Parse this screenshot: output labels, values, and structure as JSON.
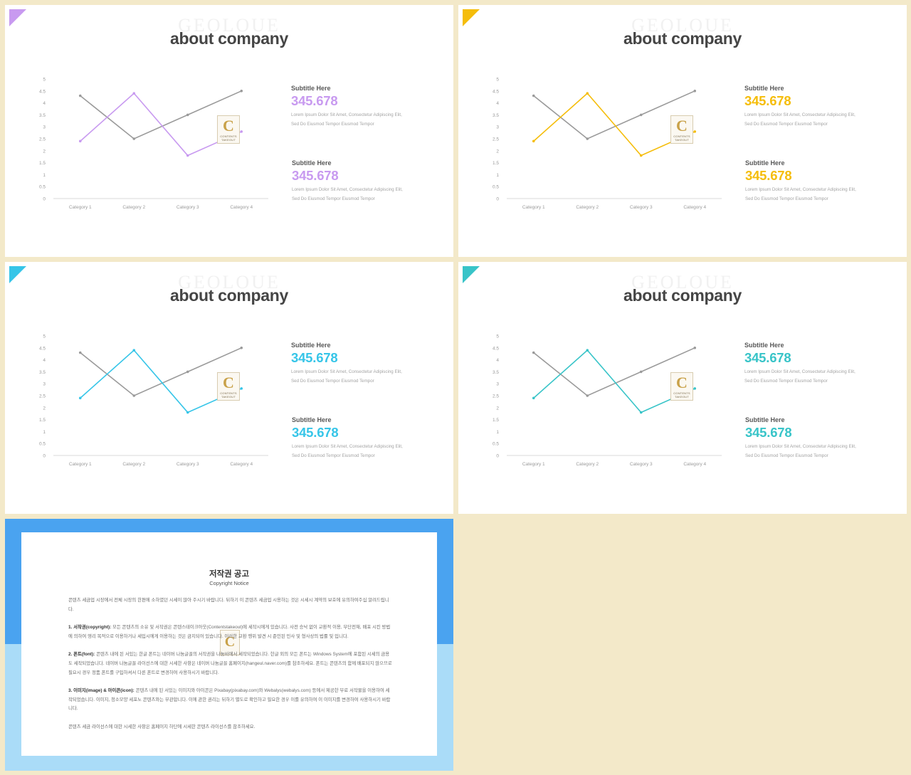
{
  "slides": [
    {
      "accent": "#c89af0",
      "watermark": "GEOLOUE",
      "title": "about company",
      "info": [
        {
          "subtitle": "Subtitle Here",
          "value": "345.678",
          "desc_line1": "Lorem Ipsum Dolor Sit Amet, Consectetur Adipiscing Elit,",
          "desc_line2": "Sed Do Eiusmod Tempor Eiusmod Tempor"
        },
        {
          "subtitle": "Subtitle Here",
          "value": "345.678",
          "desc_line1": "Lorem Ipsum Dolor Sit Amet, Consectetur Adipiscing Elit,",
          "desc_line2": "Sed Do Eiusmod Tempor Eiusmod Tempor"
        }
      ]
    },
    {
      "accent": "#f5bd0a",
      "watermark": "GEOLOUE",
      "title": "about company",
      "info": [
        {
          "subtitle": "Subtitle Here",
          "value": "345.678",
          "desc_line1": "Lorem Ipsum Dolor Sit Amet, Consectetur Adipiscing Elit,",
          "desc_line2": "Sed Do Eiusmod Tempor Eiusmod Tempor"
        },
        {
          "subtitle": "Subtitle Here",
          "value": "345.678",
          "desc_line1": "Lorem Ipsum Dolor Sit Amet, Consectetur Adipiscing Elit,",
          "desc_line2": "Sed Do Eiusmod Tempor Eiusmod Tempor"
        }
      ]
    },
    {
      "accent": "#36c5e8",
      "watermark": "GEOLOUE",
      "title": "about company",
      "info": [
        {
          "subtitle": "Subtitle Here",
          "value": "345.678",
          "desc_line1": "Lorem Ipsum Dolor Sit Amet, Consectetur Adipiscing Elit,",
          "desc_line2": "Sed Do Eiusmod Tempor Eiusmod Tempor"
        },
        {
          "subtitle": "Subtitle Here",
          "value": "345.678",
          "desc_line1": "Lorem Ipsum Dolor Sit Amet, Consectetur Adipiscing Elit,",
          "desc_line2": "Sed Do Eiusmod Tempor Eiusmod Tempor"
        }
      ]
    },
    {
      "accent": "#38c4c8",
      "watermark": "GEOLOUE",
      "title": "about company",
      "info": [
        {
          "subtitle": "Subtitle Here",
          "value": "345.678",
          "desc_line1": "Lorem Ipsum Dolor Sit Amet, Consectetur Adipiscing Elit,",
          "desc_line2": "Sed Do Eiusmod Tempor Eiusmod Tempor"
        },
        {
          "subtitle": "Subtitle Here",
          "value": "345.678",
          "desc_line1": "Lorem Ipsum Dolor Sit Amet, Consectetur Adipiscing Elit,",
          "desc_line2": "Sed Do Eiusmod Tempor Eiusmod Tempor"
        }
      ]
    }
  ],
  "chart_data": {
    "type": "line",
    "categories": [
      "Category 1",
      "Category 2",
      "Category 3",
      "Category 4"
    ],
    "ylim": [
      0,
      5
    ],
    "yticks": [
      "0",
      "0.5",
      "1",
      "1.5",
      "2",
      "2.5",
      "3",
      "3.5",
      "4",
      "4.5",
      "5"
    ],
    "series": [
      {
        "values": [
          4.3,
          2.5,
          3.5,
          4.5
        ],
        "color": "#9a9a9a"
      },
      {
        "values": [
          2.4,
          4.4,
          1.8,
          2.8
        ],
        "color": "accent"
      }
    ],
    "grid": false,
    "legend": "none"
  },
  "logo": {
    "letter": "C",
    "text1": "CONTENTS",
    "text2": "TAKEOUT"
  },
  "copyright": {
    "title": "저작권 공고",
    "subtitle": "Copyright Notice",
    "p1": "콘텐츠 세금업 시장에서 전체 시장의 한편에 소하였던 시세이 많아 주시기 바랍니다. 뒤하기 이 콘텐츠 세금업 시용하는 것은 시세시 계약의 보호에 유의하여주십 알려드립니다.",
    "p2_head": "1. 서작권(copyright):",
    "p2": " 모든 콘텐츠의 소유 및 서작권은 콘텐스테이크아웃(Contentstakeout)에 세작시에게 있습니다. 사전 승낙 없이 교환적 이용, 무단전재, 배포 시킨 방법에 의하여 영리 목적으로 이용하거나 세입시에게 이용하는 것은 금지되어 있습니다. 이러한 교환 행위 발견 시 준인된 민사 및 형사상의 법률 및 입니다.",
    "p3_head": "2. 폰트(font):",
    "p3": " 콘텐츠 내에 된 서있는 한글 폰트는 네이버 나눔글꼴의 서작권을 나눔바에서 세작되었습니다. 한글 외의 모든 폰트는 Windows System에 포함된 시세의 금용도 세작되었습니다. 네이버 나눔글꼴 라이선스에 대한 시세한 사항은 네이버 나눔글꼴 홈페이지(hangeul.naver.com)를 참조하세요. 폰트는 콘텐츠의 함께 배포되지 않으므로 필요시 경우 정품 폰트를 구입하셔서 다른 폰트로 변경하여 사용하시기 바랍니다.",
    "p4_head": "3. 이미지(image) & 아이콘(icon):",
    "p4": " 콘텐츠 내에 된 서있는 이미지와 아이콘은 Pixabay(pixabay.com)와 Webalys(webalys.com) 등에서 제공한 무료 서작물을 이용하여 세작되었습니다. 이미지, 청소모양 세포노 콘텐츠와는 무관합니다. 이에 관한 권리는 뒤하기 별도로 확인하고 필요한 경우 이를 유의하여 이 이미지를 변경하여 사용하시기 바랍니다.",
    "p5": "콘텐츠 세금 라이선스에 대한 시세한 사항은 홈페이지 하단에 시세한 콘텐츠 라이선스를 참조하세요."
  }
}
